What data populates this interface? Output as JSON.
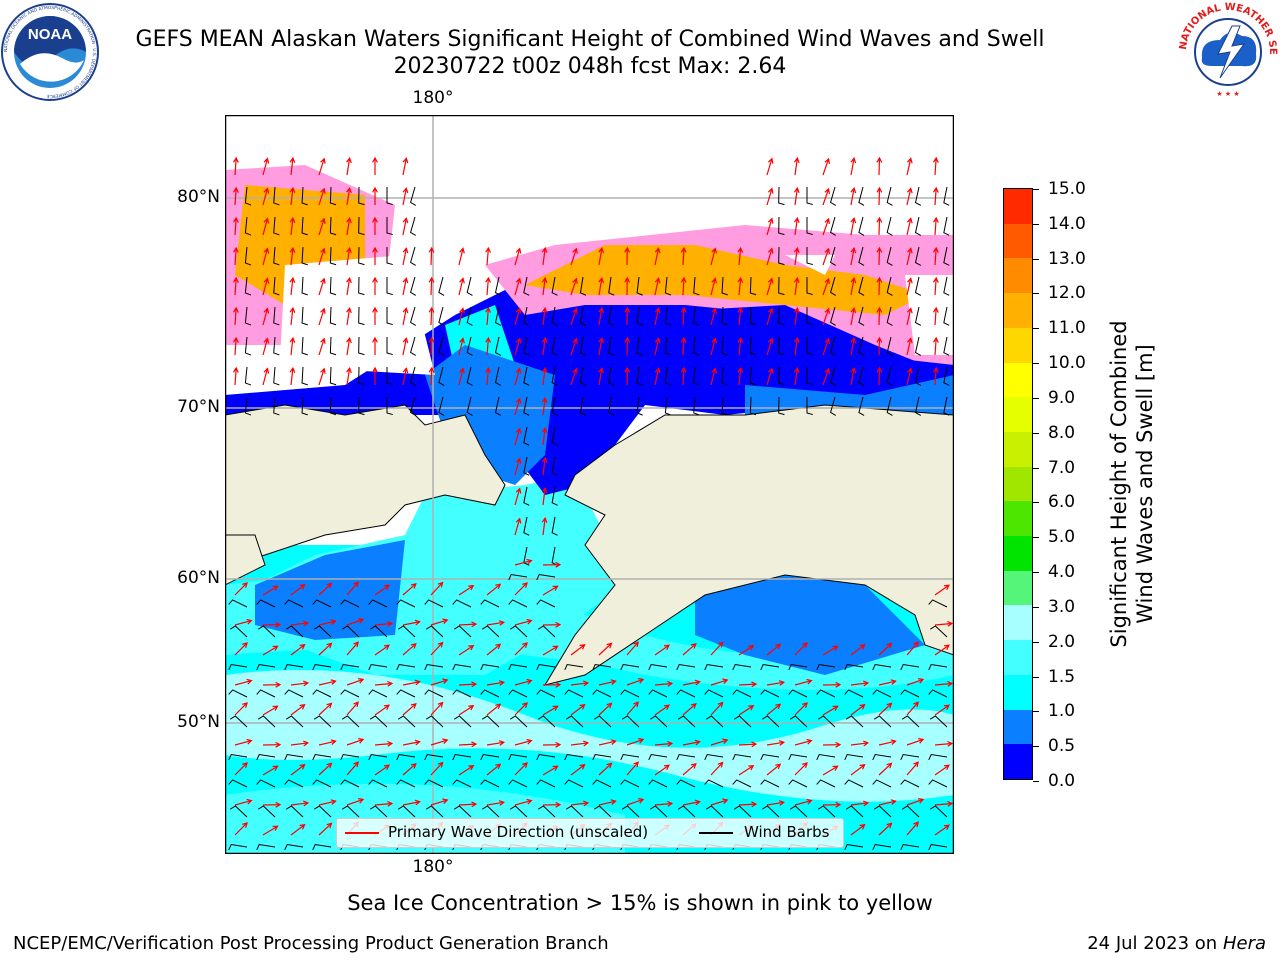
{
  "header": {
    "title_line1": "GEFS MEAN Alaskan Waters Significant Height of Combined Wind Waves and Swell",
    "title_line2": "20230722 t00z 048h fcst   Max: 2.64"
  },
  "logos": {
    "noaa": {
      "icon": "noaa-logo",
      "text": "NOAA",
      "ring_text": "NATIONAL OCEANIC AND ATMOSPHERIC ADMINISTRATION · U.S. DEPARTMENT OF COMMERCE"
    },
    "nws": {
      "icon": "nws-logo",
      "ring_text": "NATIONAL WEATHER SERVICE"
    }
  },
  "map": {
    "lat_labels": [
      "80°N",
      "70°N",
      "60°N",
      "50°N"
    ],
    "lon_label_top": "180°",
    "lon_label_bottom": "180°",
    "colors": {
      "land": "#efefdc",
      "gridline": "#b0b0b0",
      "wave_arrow": "#ff0000",
      "wind_barb": "#000000"
    }
  },
  "colorbar": {
    "label_line1": "Significant Height of Combined",
    "label_line2": "Wind Waves and Swell [m]",
    "ticks": [
      "15.0",
      "14.0",
      "13.0",
      "12.0",
      "11.0",
      "10.0",
      "9.0",
      "8.0",
      "7.0",
      "6.0",
      "5.0",
      "4.0",
      "3.0",
      "2.0",
      "1.5",
      "1.0",
      "0.5",
      "0.0"
    ],
    "colors": [
      "#0000ff",
      "#0a7fff",
      "#00ffff",
      "#44ffff",
      "#a8ffff",
      "#55f57a",
      "#00e400",
      "#4ce600",
      "#a0e600",
      "#c8f000",
      "#e6ff00",
      "#ffff00",
      "#ffd700",
      "#ffb000",
      "#ff8c00",
      "#ff5a00",
      "#ff2a00"
    ]
  },
  "legend": {
    "wave_label": "Primary Wave Direction (unscaled)",
    "wind_label": "Wind Barbs"
  },
  "ice_note": "Sea Ice Concentration > 15% is shown in pink to yellow",
  "footer": {
    "left": "NCEP/EMC/Verification Post Processing Product Generation Branch",
    "date": "24 Jul 2023 on ",
    "machine": "Hera"
  }
}
